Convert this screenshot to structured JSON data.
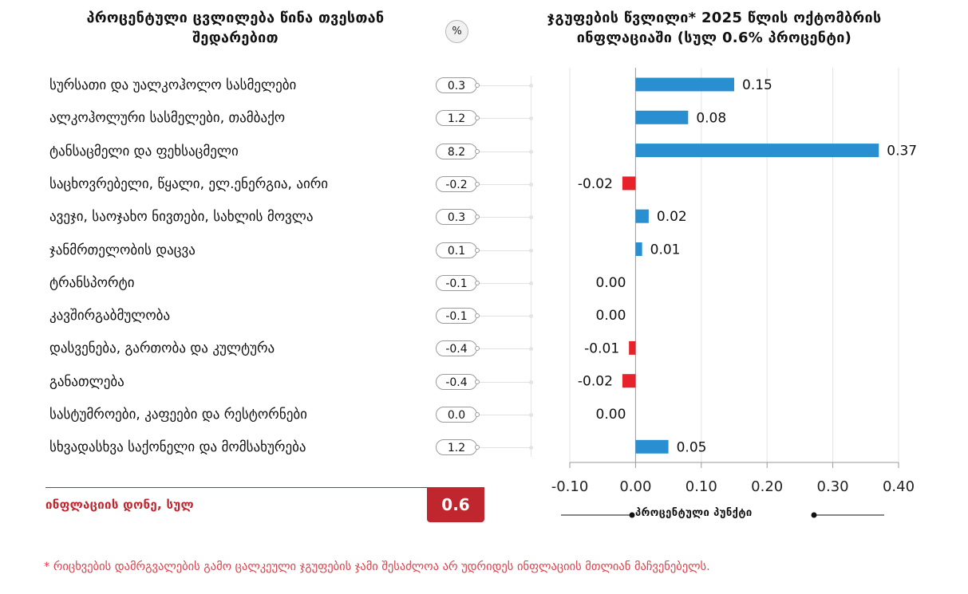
{
  "left_panel": {
    "title": "პროცენტული ცვლილება წინა თვესთან შედარებით",
    "unit_badge": "%",
    "rows": [
      {
        "label": "სურსათი და უალკოჰოლო სასმელები",
        "change": "0.3"
      },
      {
        "label": "ალკოჰოლური სასმელები, თამბაქო",
        "change": "1.2"
      },
      {
        "label": "ტანსაცმელი და ფეხსაცმელი",
        "change": "8.2"
      },
      {
        "label": "საცხოვრებელი, წყალი, ელ.ენერგია, აირი",
        "change": "-0.2"
      },
      {
        "label": "ავეჯი, საოჯახო ნივთები, სახლის მოვლა",
        "change": "0.3"
      },
      {
        "label": "ჯანმრთელობის დაცვა",
        "change": "0.1"
      },
      {
        "label": "ტრანსპორტი",
        "change": "-0.1"
      },
      {
        "label": "კავშირგაბმულობა",
        "change": "-0.1"
      },
      {
        "label": "დასვენება, გართობა და კულტურა",
        "change": "-0.4"
      },
      {
        "label": "განათლება",
        "change": "-0.4"
      },
      {
        "label": "სასტუმროები, კაფეები და რესტორნები",
        "change": "0.0"
      },
      {
        "label": "სხვადასხვა საქონელი და მომსახურება",
        "change": "1.2"
      }
    ],
    "total": {
      "label": "ინფლაციის დონე, სულ",
      "value": "0.6"
    }
  },
  "footnote": "* რიცხვების დამრგვალების გამო ცალკეული ჯგუფების ჯამი შესაძლოა არ უდრიდეს ინფლაციის მთლიან მაჩვენებელს.",
  "colors": {
    "positive": "#2a8fd0",
    "negative": "#e8222a",
    "accent": "#c0262d"
  },
  "chart_data": {
    "type": "bar",
    "orientation": "horizontal",
    "title": "ჯგუფების წვლილი* 2025 წლის ოქტომბრის ინფლაციაში (სულ 0.6% პროცენტი)",
    "xlabel": "პროცენტული პუნქტი",
    "ylabel": "",
    "categories": [
      "სურსათი და უალკოჰოლო სასმელები",
      "ალკოჰოლური სასმელები, თამბაქო",
      "ტანსაცმელი და ფეხსაცმელი",
      "საცხოვრებელი, წყალი, ელ.ენერგია, აირი",
      "ავეჯი, საოჯახო ნივთები, სახლის მოვლა",
      "ჯანმრთელობის დაცვა",
      "ტრანსპორტი",
      "კავშირგაბმულობა",
      "დასვენება, გართობა და კულტურა",
      "განათლება",
      "სასტუმროები, კაფეები და რესტორნები",
      "სხვადასხვა საქონელი და მომსახურება"
    ],
    "values": [
      0.15,
      0.08,
      0.37,
      -0.02,
      0.02,
      0.01,
      0.0,
      0.0,
      -0.01,
      -0.02,
      0.0,
      0.05
    ],
    "value_labels": [
      "0.15",
      "0.08",
      "0.37",
      "-0.02",
      "0.02",
      "0.01",
      "0.00",
      "0.00",
      "-0.01",
      "-0.02",
      "0.00",
      "0.05"
    ],
    "xlim": [
      -0.1,
      0.4
    ],
    "xticks": [
      -0.1,
      0.0,
      0.1,
      0.2,
      0.3,
      0.4
    ],
    "xtick_labels": [
      "-0.10",
      "0.00",
      "0.10",
      "0.20",
      "0.30",
      "0.40"
    ],
    "grid": true,
    "legend": "none"
  }
}
